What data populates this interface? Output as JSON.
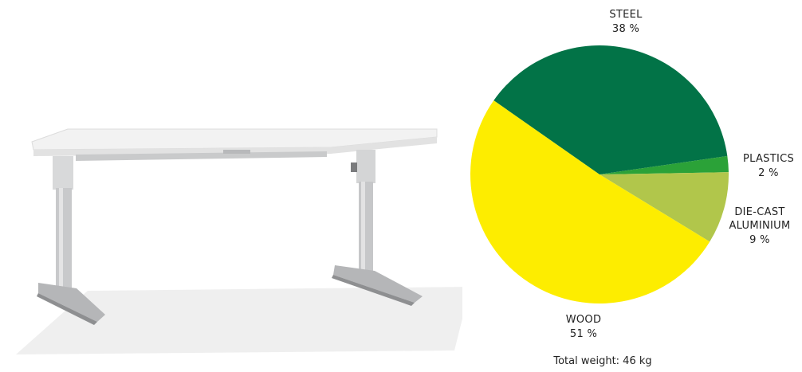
{
  "chart_data": {
    "type": "pie",
    "slices": [
      {
        "key": "steel",
        "label": "STEEL",
        "value": 38,
        "value_label": "38 %",
        "color": "#027347"
      },
      {
        "key": "plastics",
        "label": "PLASTICS",
        "value": 2,
        "value_label": "2 %",
        "color": "#2ba238"
      },
      {
        "key": "diecast",
        "label": "DIE-CAST ALUMINIUM",
        "value": 9,
        "value_label": "9 %",
        "color": "#b1c64b"
      },
      {
        "key": "wood",
        "label": "WOOD",
        "value": 51,
        "value_label": "51 %",
        "color": "#fded00"
      }
    ],
    "footnote": "Total weight: 46 kg"
  },
  "labels": {
    "steel": {
      "name": "STEEL",
      "value": "38 %"
    },
    "plastics": {
      "name": "PLASTICS",
      "value": "2 %"
    },
    "diecast": {
      "line1": "DIE-CAST",
      "line2": "ALUMINIUM",
      "value": "9 %"
    },
    "wood": {
      "name": "WOOD",
      "value": "51 %"
    }
  },
  "product_image": "height-adjustable-desk"
}
